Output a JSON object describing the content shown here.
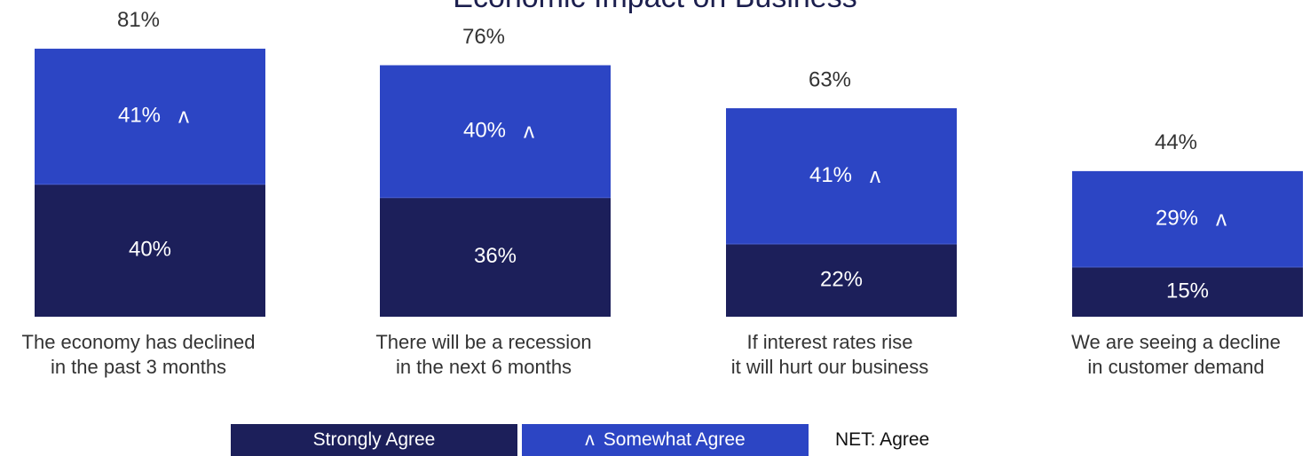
{
  "chart_data": {
    "type": "bar",
    "stacked": true,
    "title": "Economic Impact on Business",
    "categories": [
      [
        "The economy has declined",
        "in the past 3 months"
      ],
      [
        "There will be a recession",
        "in the next 6 months"
      ],
      [
        "If interest rates rise",
        "it will hurt our business"
      ],
      [
        "We are seeing a decline",
        "in customer demand"
      ]
    ],
    "series": [
      {
        "name": "Strongly Agree",
        "values": [
          40,
          36,
          22,
          15
        ],
        "labels": [
          "40%",
          "36%",
          "22%",
          "15%"
        ],
        "color": "#1c1f5a"
      },
      {
        "name": "Somewhat Agree",
        "values": [
          41,
          40,
          41,
          29
        ],
        "labels": [
          "41%",
          "40%",
          "41%",
          "29%"
        ],
        "color": "#2c45c4"
      }
    ],
    "net": {
      "name": "NET: Agree",
      "values": [
        81,
        76,
        63,
        44
      ],
      "labels": [
        "81%",
        "76%",
        "63%",
        "44%"
      ]
    },
    "marker": "ʌ",
    "legend_position": "bottom",
    "grid": false
  }
}
